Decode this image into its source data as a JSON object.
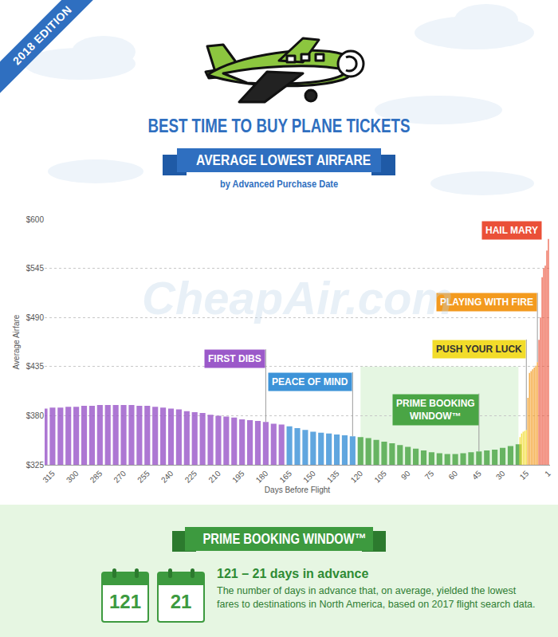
{
  "chart_data": {
    "type": "bar",
    "edition": "2018 EDITION",
    "title": "BEST TIME TO BUY PLANE TICKETS",
    "subtitle": "AVERAGE LOWEST AIRFARE",
    "caption": "by Advanced Purchase Date",
    "watermark": "CheapAir.com",
    "x_label": "Days Before Flight",
    "y_label": "Average Airfare",
    "xlim": [
      320,
      0
    ],
    "xticks": [
      315,
      300,
      285,
      270,
      255,
      240,
      225,
      210,
      195,
      180,
      165,
      150,
      135,
      120,
      105,
      90,
      75,
      60,
      45,
      30,
      15,
      1
    ],
    "ylim": [
      325,
      600
    ],
    "yticks": [
      {
        "value": 325,
        "label": "$325"
      },
      {
        "value": 380,
        "label": "$380"
      },
      {
        "value": 435,
        "label": "$435"
      },
      {
        "value": 490,
        "label": "$490"
      },
      {
        "value": 545,
        "label": "$545"
      },
      {
        "value": 600,
        "label": "$600"
      }
    ],
    "grid": true,
    "series": [
      {
        "name": "FIRST DIBS",
        "color": "#9b59c9",
        "x": [
          320,
          315,
          310,
          305,
          300,
          295,
          290,
          285,
          280,
          275,
          270,
          265,
          260,
          255,
          250,
          245,
          240,
          235,
          230,
          225,
          220,
          215,
          210,
          205,
          200,
          195,
          190,
          185,
          180,
          175,
          170
        ],
        "values": [
          388,
          389,
          389,
          390,
          390,
          391,
          391,
          392,
          392,
          392,
          392,
          392,
          391,
          391,
          390,
          389,
          388,
          387,
          385,
          384,
          383,
          381,
          380,
          379,
          378,
          376,
          375,
          374,
          373,
          371,
          370
        ]
      },
      {
        "name": "PEACE OF MIND",
        "color": "#3d93d8",
        "x": [
          165,
          160,
          155,
          150,
          145,
          140,
          135,
          130,
          125
        ],
        "values": [
          368,
          366,
          364,
          362,
          361,
          360,
          359,
          358,
          357
        ]
      },
      {
        "name": "PRIME BOOKING WINDOW™",
        "color": "#4aa545",
        "x": [
          120,
          115,
          110,
          105,
          100,
          95,
          90,
          85,
          80,
          75,
          70,
          65,
          60,
          55,
          50,
          45,
          40,
          35,
          30,
          25,
          20
        ],
        "values": [
          356,
          355,
          353,
          351,
          349,
          347,
          345,
          343,
          341,
          339,
          338,
          337,
          337,
          338,
          339,
          340,
          341,
          342,
          344,
          346,
          348
        ]
      },
      {
        "name": "PUSH YOUR LUCK",
        "color": "#f2dc2a",
        "x": [
          19,
          18,
          17,
          16,
          15
        ],
        "values": [
          356,
          360,
          362,
          363,
          364
        ]
      },
      {
        "name": "PLAYING WITH FIRE",
        "color": "#f39a1e",
        "x": [
          14,
          13,
          12,
          11,
          10,
          9,
          8
        ],
        "values": [
          400,
          428,
          430,
          432,
          434,
          436,
          440
        ]
      },
      {
        "name": "HAIL MARY",
        "color": "#ea5038",
        "x": [
          7,
          6,
          5,
          4,
          3,
          2,
          1
        ],
        "values": [
          465,
          490,
          535,
          545,
          548,
          565,
          578
        ]
      }
    ]
  },
  "footer": {
    "ribbon": "PRIME BOOKING WINDOW™",
    "calendar": [
      121,
      21
    ],
    "heading": "121 – 21 days in advance",
    "text": "The number of days in advance that, on average, yielded the lowest fares to destinations in North America, based on 2017 flight search data."
  }
}
